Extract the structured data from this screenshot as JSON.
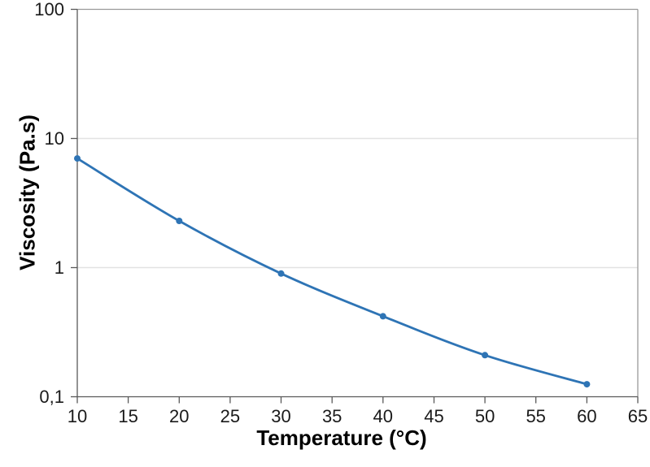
{
  "chart_data": {
    "type": "line",
    "title": "",
    "xlabel": "Temperature (°C)",
    "ylabel": "Viscosity (Pa.s)",
    "x": [
      10,
      20,
      30,
      40,
      50,
      60
    ],
    "series": [
      {
        "name": "viscosity",
        "values": [
          7.0,
          2.3,
          0.9,
          0.42,
          0.21,
          0.125
        ]
      }
    ],
    "x_tick_values": [
      10,
      15,
      20,
      25,
      30,
      35,
      40,
      45,
      50,
      55,
      60,
      65
    ],
    "x_tick_labels": [
      "10",
      "15",
      "20",
      "25",
      "30",
      "35",
      "40",
      "45",
      "50",
      "55",
      "60",
      "65"
    ],
    "y_ticks": [
      {
        "value": 100,
        "label": "100"
      },
      {
        "value": 10,
        "label": "10"
      },
      {
        "value": 1,
        "label": "1"
      },
      {
        "value": 0.1,
        "label": "0,1"
      }
    ],
    "xlim": [
      10,
      65
    ],
    "ylim": [
      0.1,
      100
    ],
    "y_scale": "log",
    "x_scale": "linear",
    "grid": "horizontal major gridlines only",
    "legend_position": "none",
    "line_style": "smooth",
    "marker": "circle"
  },
  "colors": {
    "background": "#ffffff",
    "series_line": "#2e74b5",
    "marker_fill": "#2e74b5",
    "axis_line": "#595959",
    "plot_border": "#9a9a9a",
    "gridline": "#e2e2e2",
    "tick_label": "#1a1a1a",
    "axis_title": "#000000"
  }
}
